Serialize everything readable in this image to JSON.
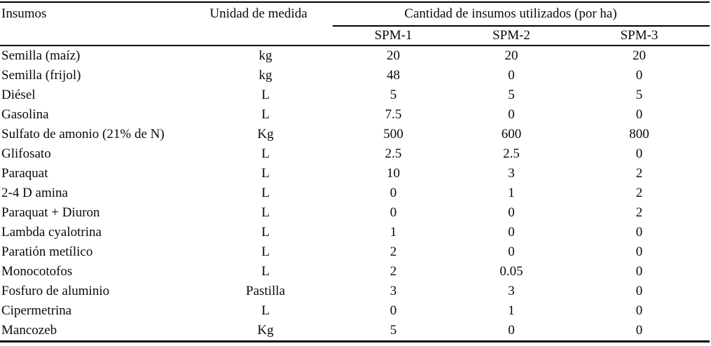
{
  "table": {
    "headers": {
      "insumos": "Insumos",
      "unidad": "Unidad de medida",
      "cantidad_span": "Cantidad de insumos utilizados (por ha)",
      "spm1": "SPM-1",
      "spm2": "SPM-2",
      "spm3": "SPM-3"
    },
    "rows": [
      {
        "insumo": "Semilla (maíz)",
        "unidad": "kg",
        "spm1": "20",
        "spm2": "20",
        "spm3": "20"
      },
      {
        "insumo": "Semilla (frijol)",
        "unidad": "kg",
        "spm1": "48",
        "spm2": "0",
        "spm3": "0"
      },
      {
        "insumo": "Diésel",
        "unidad": "L",
        "spm1": "5",
        "spm2": "5",
        "spm3": "5"
      },
      {
        "insumo": "Gasolina",
        "unidad": "L",
        "spm1": "7.5",
        "spm2": "0",
        "spm3": "0"
      },
      {
        "insumo": "Sulfato de amonio (21% de N)",
        "unidad": "Kg",
        "spm1": "500",
        "spm2": "600",
        "spm3": "800"
      },
      {
        "insumo": "Glifosato",
        "unidad": "L",
        "spm1": "2.5",
        "spm2": "2.5",
        "spm3": "0"
      },
      {
        "insumo": "Paraquat",
        "unidad": "L",
        "spm1": "10",
        "spm2": "3",
        "spm3": "2"
      },
      {
        "insumo": "2-4 D amina",
        "unidad": "L",
        "spm1": "0",
        "spm2": "1",
        "spm3": "2"
      },
      {
        "insumo": "Paraquat + Diuron",
        "unidad": "L",
        "spm1": "0",
        "spm2": "0",
        "spm3": "2"
      },
      {
        "insumo": "Lambda cyalotrina",
        "unidad": "L",
        "spm1": "1",
        "spm2": "0",
        "spm3": "0"
      },
      {
        "insumo": "Paratión metílico",
        "unidad": "L",
        "spm1": "2",
        "spm2": "0",
        "spm3": "0"
      },
      {
        "insumo": "Monocotofos",
        "unidad": "L",
        "spm1": "2",
        "spm2": "0.05",
        "spm3": "0"
      },
      {
        "insumo": "Fosfuro de aluminio",
        "unidad": "Pastilla",
        "spm1": "3",
        "spm2": "3",
        "spm3": "0"
      },
      {
        "insumo": "Cipermetrina",
        "unidad": "L",
        "spm1": "0",
        "spm2": "1",
        "spm3": "0"
      },
      {
        "insumo": "Mancozeb",
        "unidad": "Kg",
        "spm1": "5",
        "spm2": "0",
        "spm3": "0"
      }
    ]
  }
}
